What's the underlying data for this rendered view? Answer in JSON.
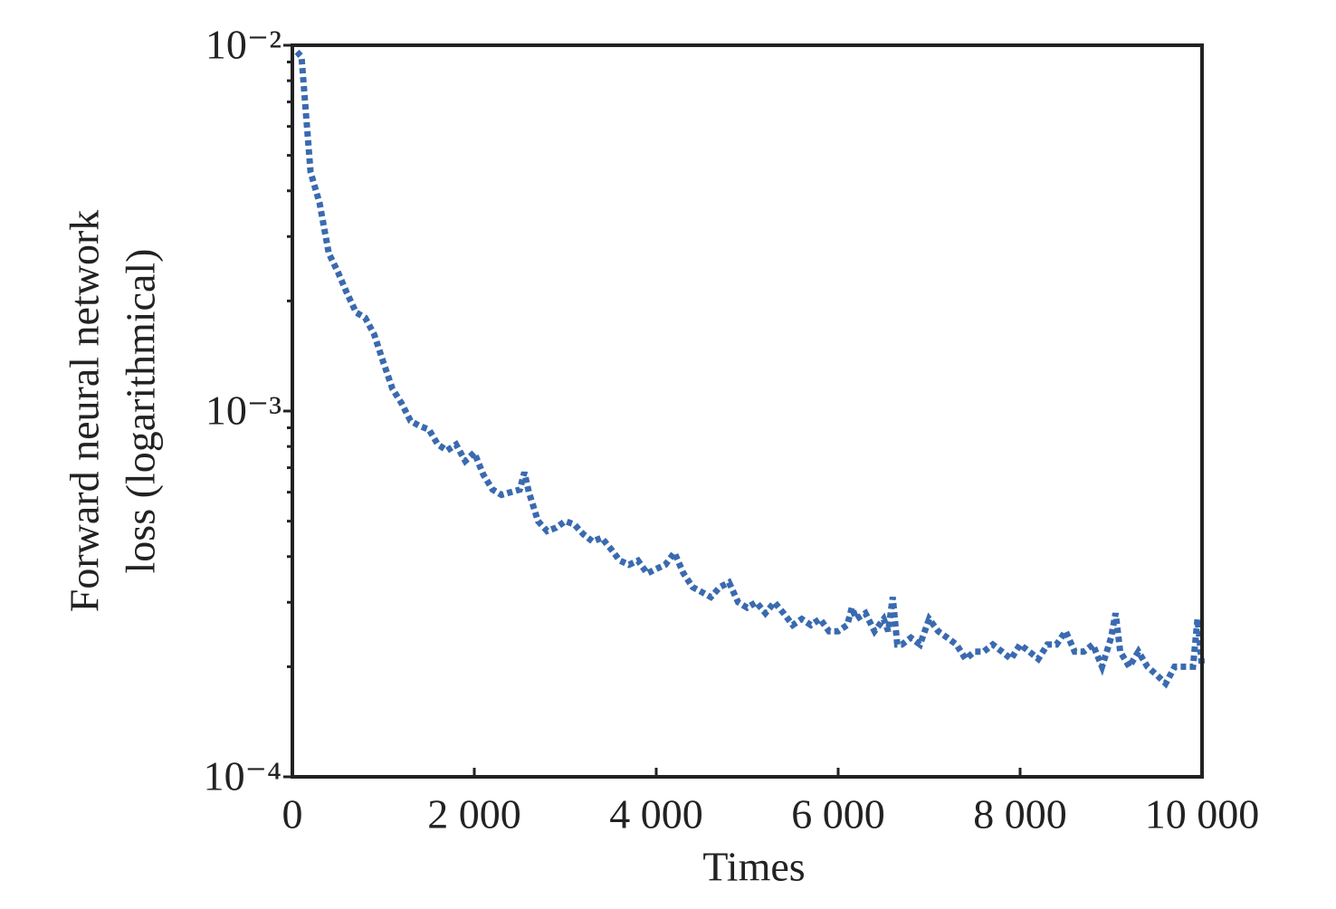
{
  "chart_data": {
    "type": "line",
    "xlabel": "Times",
    "ylabel": [
      "Forward neural network",
      "loss (logarithmical)"
    ],
    "yscale": "log",
    "xlim": [
      0,
      10000
    ],
    "xticks": [
      0,
      {
        "value": 2000,
        "label": "2 000"
      },
      {
        "value": 4000,
        "label": "4 000"
      },
      {
        "value": 6000,
        "label": "6 000"
      },
      {
        "value": 8000,
        "label": "8 000"
      },
      {
        "value": 10000,
        "label": "10 000"
      }
    ],
    "ylim": [
      0.0001,
      0.01
    ],
    "yticks": [
      {
        "value": 0.0001,
        "label": "10⁻⁴"
      },
      {
        "value": 0.001,
        "label": "10⁻³"
      },
      {
        "value": 0.01,
        "label": "10⁻²"
      }
    ],
    "yminorticks": [
      0.0002,
      0.0003,
      0.0004,
      0.0005,
      0.0006,
      0.0007,
      0.0008,
      0.0009,
      0.002,
      0.003,
      0.004,
      0.005,
      0.006,
      0.007,
      0.008,
      0.009
    ],
    "series": [
      {
        "color": "#3a6ab0",
        "x": [
          50,
          100,
          200,
          300,
          400,
          500,
          600,
          700,
          800,
          900,
          1000,
          1100,
          1200,
          1300,
          1400,
          1500,
          1600,
          1700,
          1800,
          1900,
          2000,
          2100,
          2200,
          2300,
          2400,
          2500,
          2550,
          2600,
          2700,
          2800,
          2900,
          3000,
          3100,
          3200,
          3300,
          3400,
          3500,
          3600,
          3700,
          3800,
          3900,
          4000,
          4100,
          4200,
          4300,
          4400,
          4500,
          4600,
          4700,
          4800,
          4900,
          5000,
          5100,
          5200,
          5300,
          5400,
          5500,
          5600,
          5700,
          5800,
          5900,
          6000,
          6100,
          6150,
          6200,
          6300,
          6400,
          6500,
          6550,
          6600,
          6650,
          6700,
          6800,
          6900,
          7000,
          7100,
          7200,
          7300,
          7400,
          7500,
          7600,
          7700,
          7800,
          7900,
          8000,
          8100,
          8200,
          8300,
          8400,
          8500,
          8600,
          8700,
          8800,
          8900,
          9000,
          9050,
          9100,
          9200,
          9300,
          9400,
          9500,
          9600,
          9700,
          9800,
          9900,
          9950,
          10000
        ],
        "values": [
          0.0096,
          0.0093,
          0.0045,
          0.0037,
          0.0027,
          0.0024,
          0.0021,
          0.00186,
          0.0018,
          0.00162,
          0.00136,
          0.00115,
          0.00105,
          0.00094,
          0.00091,
          0.00089,
          0.00081,
          0.00078,
          0.00081,
          0.00073,
          0.00077,
          0.00067,
          0.00061,
          0.00059,
          0.0006,
          0.00061,
          0.00068,
          0.0006,
          0.0005,
          0.00047,
          0.00048,
          0.0005,
          0.00049,
          0.00046,
          0.00044,
          0.00045,
          0.00042,
          0.00039,
          0.00038,
          0.00039,
          0.00036,
          0.00037,
          0.00038,
          0.00041,
          0.00036,
          0.00033,
          0.00032,
          0.00031,
          0.00033,
          0.00034,
          0.0003,
          0.00029,
          0.0003,
          0.00028,
          0.0003,
          0.00028,
          0.00026,
          0.00027,
          0.00026,
          0.00027,
          0.00025,
          0.00025,
          0.00026,
          0.00029,
          0.00027,
          0.00028,
          0.00025,
          0.00027,
          0.00025,
          0.00031,
          0.00023,
          0.00023,
          0.00024,
          0.00023,
          0.00027,
          0.00025,
          0.00024,
          0.00023,
          0.00021,
          0.00022,
          0.00022,
          0.00023,
          0.00022,
          0.00021,
          0.00023,
          0.00022,
          0.00021,
          0.00023,
          0.00023,
          0.00025,
          0.00022,
          0.00022,
          0.00023,
          0.0002,
          0.00024,
          0.00028,
          0.00022,
          0.0002,
          0.00022,
          0.0002,
          0.00019,
          0.00018,
          0.0002,
          0.0002,
          0.0002,
          0.00027,
          0.0002
        ]
      }
    ]
  }
}
